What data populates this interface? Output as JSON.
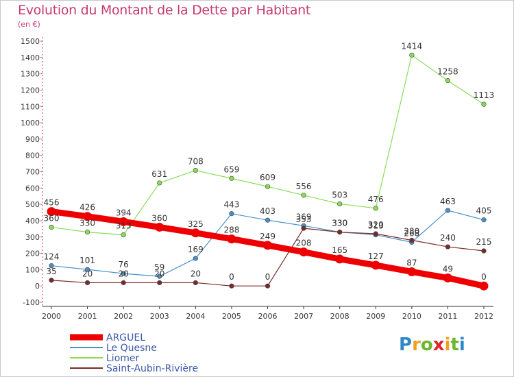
{
  "title": "Evolution du Montant de la Dette par Habitant",
  "subtitle": "(en €)",
  "logo": {
    "letters": [
      "P",
      "r",
      "o",
      "x",
      "i",
      "t",
      "i"
    ],
    "colors": [
      "#2f87c8",
      "#f0a020",
      "#6bb82e",
      "#e0242a",
      "#f0a020",
      "#6bb82e",
      "#2f87c8"
    ]
  },
  "chart_data": {
    "type": "line",
    "x": [
      "2000",
      "2001",
      "2002",
      "2003",
      "2004",
      "2005",
      "2006",
      "2007",
      "2008",
      "2009",
      "2010",
      "2011",
      "2012"
    ],
    "ylim": [
      -100,
      1500
    ],
    "yticks": [
      -100,
      0,
      100,
      200,
      300,
      400,
      500,
      600,
      700,
      800,
      900,
      1000,
      1100,
      1200,
      1300,
      1400,
      1500
    ],
    "grid": false,
    "legend_position": "bottom-left",
    "series": [
      {
        "name": "ARGUEL",
        "color": "#ee0000",
        "emphasis": true,
        "values": [
          456,
          426,
          394,
          360,
          325,
          288,
          249,
          208,
          165,
          127,
          87,
          49,
          0
        ]
      },
      {
        "name": "Le Quesne",
        "color": "#4a90c8",
        "values": [
          124,
          101,
          76,
          59,
          169,
          443,
          403,
          369,
          330,
          313,
          268,
          463,
          405
        ]
      },
      {
        "name": "Liomer",
        "color": "#88dd55",
        "values": [
          360,
          330,
          313,
          631,
          708,
          659,
          609,
          556,
          503,
          476,
          1414,
          1258,
          1113
        ]
      },
      {
        "name": "Saint-Aubin-Rivière",
        "color": "#7a2a2a",
        "values": [
          35,
          20,
          20,
          20,
          20,
          0,
          0,
          353,
          330,
          320,
          280,
          240,
          215
        ]
      }
    ]
  }
}
